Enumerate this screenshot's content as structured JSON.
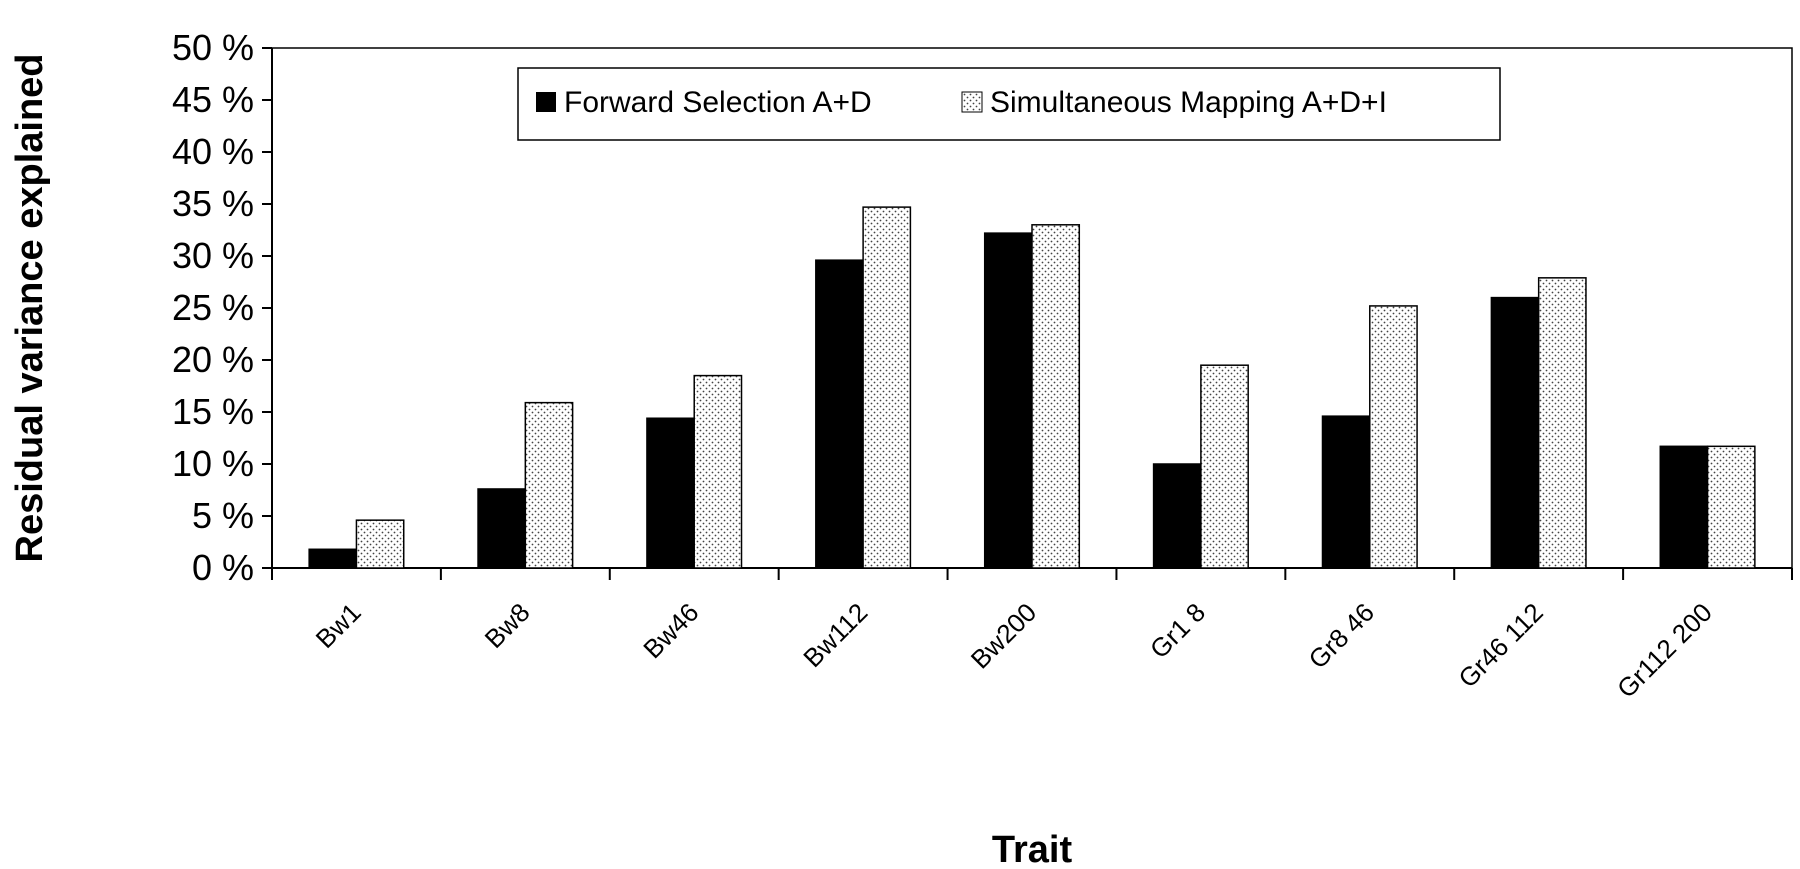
{
  "chart_data": {
    "type": "bar",
    "title": "",
    "xlabel": "Trait",
    "ylabel": "Residual variance explained",
    "categories": [
      "Bw1",
      "Bw8",
      "Bw46",
      "Bw112",
      "Bw200",
      "Gr1 8",
      "Gr8 46",
      "Gr46 112",
      "Gr112 200"
    ],
    "series": [
      {
        "name": "Forward Selection A+D",
        "color": "#000000",
        "pattern": "solid",
        "values": [
          1.8,
          7.6,
          14.4,
          29.6,
          32.2,
          10.0,
          14.6,
          26.0,
          11.7
        ]
      },
      {
        "name": "Simultaneous Mapping A+D+I",
        "color": "#ffffff",
        "pattern": "dotted",
        "values": [
          4.6,
          15.9,
          18.5,
          34.7,
          33.0,
          19.5,
          25.2,
          27.9,
          11.7
        ]
      }
    ],
    "ylim": [
      0,
      50
    ],
    "yticks": [
      0,
      5,
      10,
      15,
      20,
      25,
      30,
      35,
      40,
      45,
      50
    ],
    "ytick_labels": [
      "0 %",
      "5 %",
      "10 %",
      "15 %",
      "20 %",
      "25 %",
      "30 %",
      "35 %",
      "40 %",
      "45 %",
      "50 %"
    ],
    "grid": false,
    "legend_position": "top-center"
  }
}
